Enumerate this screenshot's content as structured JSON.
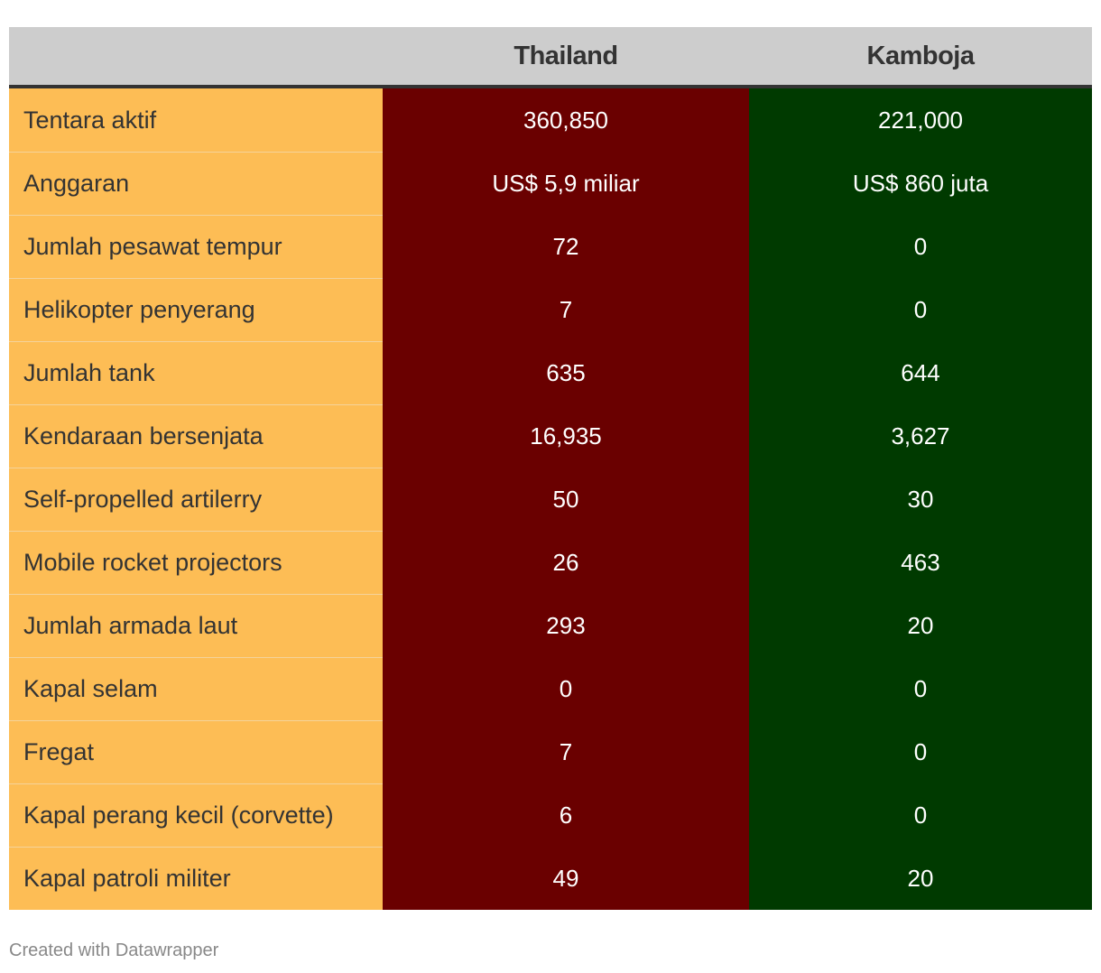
{
  "chart_data": {
    "type": "table",
    "columns": [
      "",
      "Thailand",
      "Kamboja"
    ],
    "rows": [
      {
        "label": "Tentara aktif",
        "thailand": "360,850",
        "kamboja": "221,000"
      },
      {
        "label": "Anggaran",
        "thailand": "US$ 5,9 miliar",
        "kamboja": "US$ 860 juta"
      },
      {
        "label": "Jumlah pesawat tempur",
        "thailand": "72",
        "kamboja": "0"
      },
      {
        "label": "Helikopter penyerang",
        "thailand": "7",
        "kamboja": "0"
      },
      {
        "label": "Jumlah tank",
        "thailand": "635",
        "kamboja": "644"
      },
      {
        "label": "Kendaraan bersenjata",
        "thailand": "16,935",
        "kamboja": "3,627"
      },
      {
        "label": "Self-propelled artilerry",
        "thailand": "50",
        "kamboja": "30"
      },
      {
        "label": "Mobile rocket projectors",
        "thailand": "26",
        "kamboja": "463"
      },
      {
        "label": "Jumlah armada laut",
        "thailand": "293",
        "kamboja": "20"
      },
      {
        "label": "Kapal selam",
        "thailand": "0",
        "kamboja": "0"
      },
      {
        "label": "Fregat",
        "thailand": "7",
        "kamboja": "0"
      },
      {
        "label": "Kapal perang kecil (corvette)",
        "thailand": "6",
        "kamboja": "0"
      },
      {
        "label": "Kapal patroli militer",
        "thailand": "49",
        "kamboja": "20"
      }
    ]
  },
  "colors": {
    "header_bg": "#cdcdcd",
    "label_bg": "#fdbd55",
    "thailand_bg": "#6a0000",
    "kamboja_bg": "#003a00"
  },
  "footer": {
    "credit": "Created with Datawrapper"
  }
}
